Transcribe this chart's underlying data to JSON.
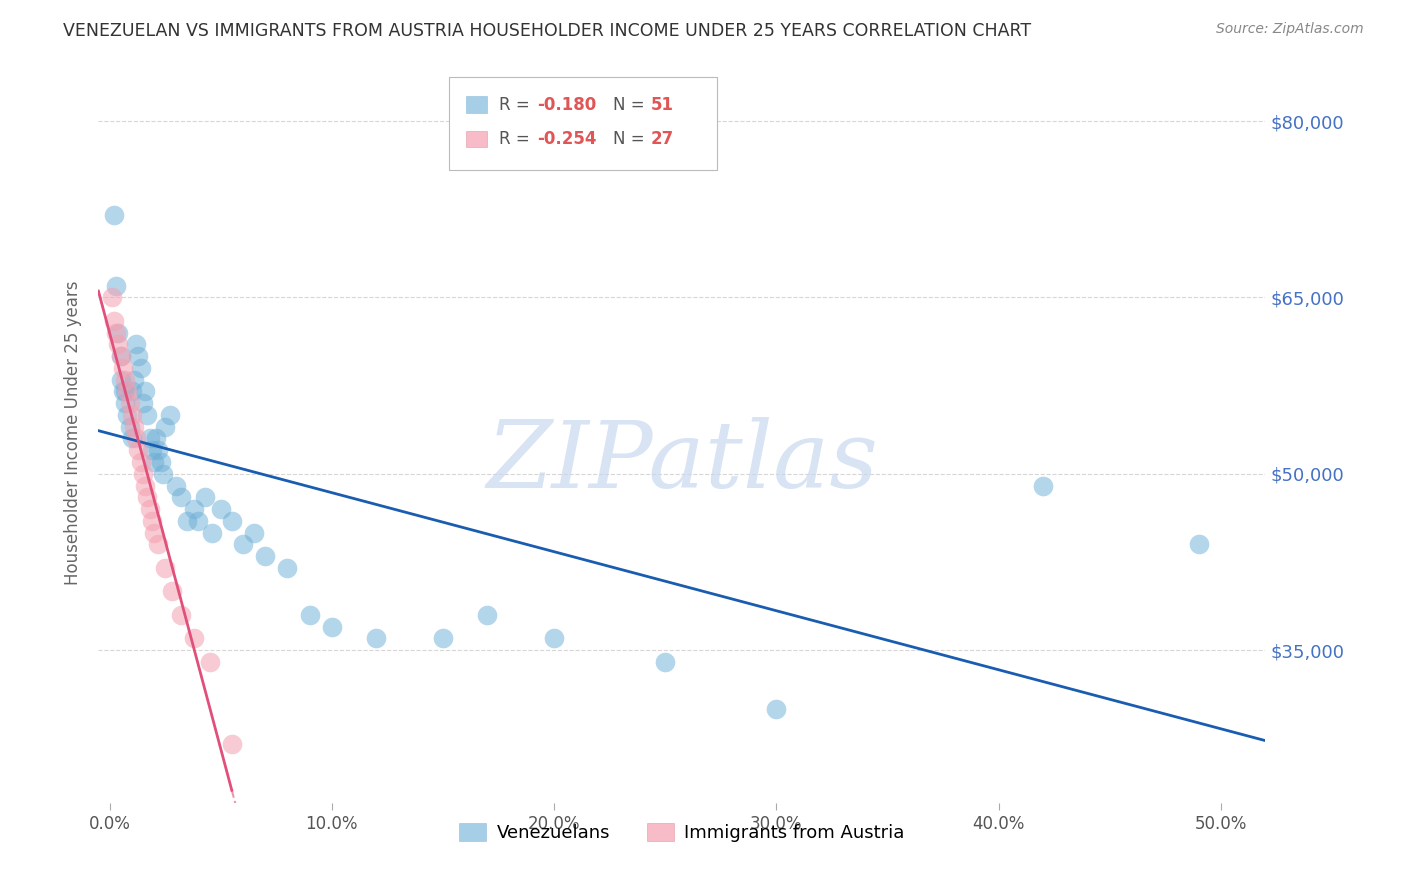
{
  "title": "VENEZUELAN VS IMMIGRANTS FROM AUSTRIA HOUSEHOLDER INCOME UNDER 25 YEARS CORRELATION CHART",
  "source": "Source: ZipAtlas.com",
  "ylabel": "Householder Income Under 25 years",
  "xlabel_ticks": [
    "0.0%",
    "10.0%",
    "20.0%",
    "30.0%",
    "40.0%",
    "50.0%"
  ],
  "xlabel_tick_vals": [
    0.0,
    0.1,
    0.2,
    0.3,
    0.4,
    0.5
  ],
  "ytick_labels": [
    "$35,000",
    "$50,000",
    "$65,000",
    "$80,000"
  ],
  "ytick_vals": [
    35000,
    50000,
    65000,
    80000
  ],
  "ylim": [
    22000,
    85000
  ],
  "xlim": [
    -0.005,
    0.52
  ],
  "venezuelan_color": "#6baed6",
  "austria_color": "#f4a0b0",
  "venezuelan_label": "Venezuelans",
  "austria_label": "Immigrants from Austria",
  "blue_line_color": "#1a5db0",
  "pink_line_color": "#e0507a",
  "background_color": "#ffffff",
  "grid_color": "#cccccc",
  "title_color": "#333333",
  "ytick_color": "#4472c4",
  "watermark_text": "ZIPatlas",
  "legend_r1": "R = ",
  "legend_v1": "-0.180",
  "legend_n1_label": "N = ",
  "legend_n1_val": "51",
  "legend_r2": "R = ",
  "legend_v2": "-0.254",
  "legend_n2_label": "N = ",
  "legend_n2_val": "27",
  "venezuelan_x": [
    0.002,
    0.003,
    0.004,
    0.005,
    0.005,
    0.006,
    0.007,
    0.007,
    0.008,
    0.009,
    0.01,
    0.01,
    0.011,
    0.012,
    0.013,
    0.014,
    0.015,
    0.016,
    0.017,
    0.018,
    0.019,
    0.02,
    0.021,
    0.022,
    0.023,
    0.024,
    0.025,
    0.027,
    0.03,
    0.032,
    0.035,
    0.038,
    0.04,
    0.043,
    0.046,
    0.05,
    0.055,
    0.06,
    0.065,
    0.07,
    0.08,
    0.09,
    0.1,
    0.12,
    0.15,
    0.17,
    0.2,
    0.25,
    0.3,
    0.42,
    0.49
  ],
  "venezuelan_y": [
    72000,
    66000,
    62000,
    60000,
    58000,
    57000,
    57000,
    56000,
    55000,
    54000,
    53000,
    57000,
    58000,
    61000,
    60000,
    59000,
    56000,
    57000,
    55000,
    53000,
    52000,
    51000,
    53000,
    52000,
    51000,
    50000,
    54000,
    55000,
    49000,
    48000,
    46000,
    47000,
    46000,
    48000,
    45000,
    47000,
    46000,
    44000,
    45000,
    43000,
    42000,
    38000,
    37000,
    36000,
    36000,
    38000,
    36000,
    34000,
    30000,
    49000,
    44000
  ],
  "austria_x": [
    0.001,
    0.002,
    0.003,
    0.004,
    0.005,
    0.006,
    0.007,
    0.008,
    0.009,
    0.01,
    0.011,
    0.012,
    0.013,
    0.014,
    0.015,
    0.016,
    0.017,
    0.018,
    0.019,
    0.02,
    0.022,
    0.025,
    0.028,
    0.032,
    0.038,
    0.045,
    0.055
  ],
  "austria_y": [
    65000,
    63000,
    62000,
    61000,
    60000,
    59000,
    58000,
    57000,
    56000,
    55000,
    54000,
    53000,
    52000,
    51000,
    50000,
    49000,
    48000,
    47000,
    46000,
    45000,
    44000,
    42000,
    40000,
    38000,
    36000,
    34000,
    27000
  ]
}
